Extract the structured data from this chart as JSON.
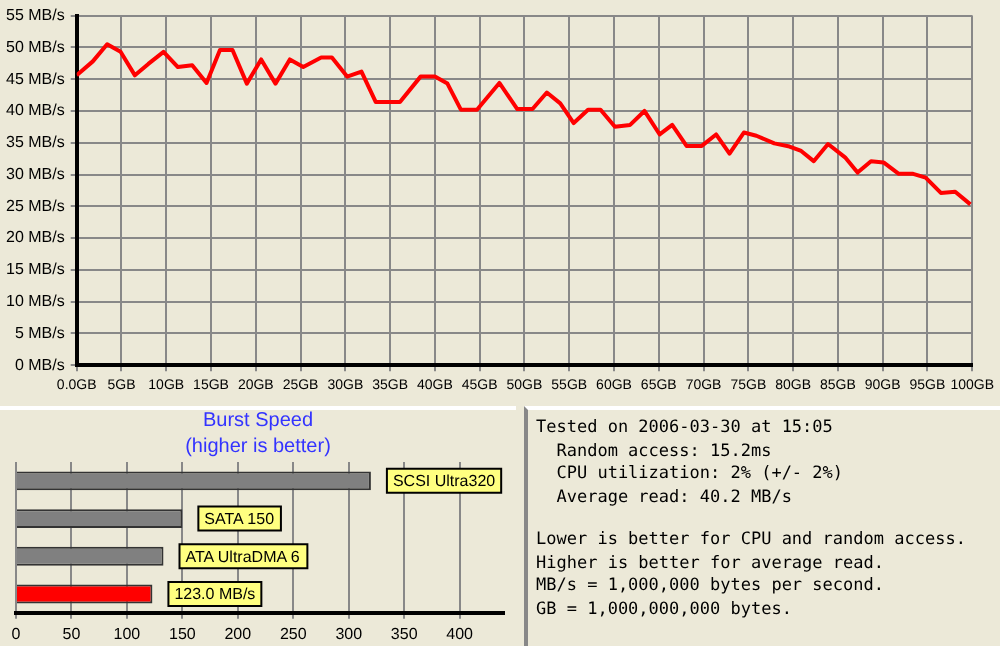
{
  "chart_data": [
    {
      "type": "line",
      "x": [
        0,
        1.8,
        3.4,
        4.9,
        6.5,
        8.0,
        9.7,
        11.3,
        12.9,
        14.5,
        16.0,
        17.4,
        19.0,
        20.6,
        22.2,
        23.8,
        25.3,
        27.3,
        28.5,
        30.2,
        31.8,
        33.4,
        36.1,
        38.4,
        40.0,
        41.4,
        42.9,
        44.7,
        47.2,
        49.2,
        50.9,
        52.5,
        54.0,
        55.5,
        57.1,
        58.5,
        60.1,
        61.8,
        63.4,
        65.1,
        66.5,
        68.1,
        69.8,
        71.4,
        72.9,
        74.5,
        75.9,
        77.9,
        79.6,
        80.9,
        82.3,
        83.9,
        85.8,
        87.2,
        88.7,
        90.1,
        91.8,
        93.4,
        94.8,
        96.5,
        98.1,
        99.8
      ],
      "series": [
        {
          "color": "#ff0000",
          "values": [
            45.6,
            47.8,
            50.5,
            49.3,
            45.6,
            47.4,
            49.3,
            46.9,
            47.2,
            44.4,
            49.6,
            49.6,
            44.3,
            48.1,
            44.3,
            48.1,
            46.9,
            48.4,
            48.4,
            45.4,
            46.2,
            41.4,
            41.4,
            45.4,
            45.4,
            44.3,
            40.2,
            40.2,
            44.4,
            40.3,
            40.3,
            42.9,
            41.2,
            38.1,
            40.2,
            40.2,
            37.5,
            37.8,
            40.0,
            36.3,
            37.8,
            34.5,
            34.5,
            36.3,
            33.3,
            36.6,
            36.1,
            34.9,
            34.4,
            33.7,
            32.1,
            34.8,
            32.7,
            30.3,
            32.1,
            31.9,
            30.1,
            30.1,
            29.5,
            27.1,
            27.3,
            25.3
          ]
        }
      ],
      "xlim": [
        0,
        100
      ],
      "xticks": [
        {
          "value": 0,
          "label": "0.0GB"
        },
        {
          "value": 5,
          "label": "5GB"
        },
        {
          "value": 10,
          "label": "10GB"
        },
        {
          "value": 15,
          "label": "15GB"
        },
        {
          "value": 20,
          "label": "20GB"
        },
        {
          "value": 25,
          "label": "25GB"
        },
        {
          "value": 30,
          "label": "30GB"
        },
        {
          "value": 35,
          "label": "35GB"
        },
        {
          "value": 40,
          "label": "40GB"
        },
        {
          "value": 45,
          "label": "45GB"
        },
        {
          "value": 50,
          "label": "50GB"
        },
        {
          "value": 55,
          "label": "55GB"
        },
        {
          "value": 60,
          "label": "60GB"
        },
        {
          "value": 65,
          "label": "65GB"
        },
        {
          "value": 70,
          "label": "70GB"
        },
        {
          "value": 75,
          "label": "75GB"
        },
        {
          "value": 80,
          "label": "80GB"
        },
        {
          "value": 85,
          "label": "85GB"
        },
        {
          "value": 90,
          "label": "90GB"
        },
        {
          "value": 95,
          "label": "95GB"
        },
        {
          "value": 100,
          "label": "100GB"
        }
      ],
      "ylim": [
        0,
        55
      ],
      "yticks": [
        {
          "value": 0,
          "label": "0 MB/s"
        },
        {
          "value": 5,
          "label": "5 MB/s"
        },
        {
          "value": 10,
          "label": "10 MB/s"
        },
        {
          "value": 15,
          "label": "15 MB/s"
        },
        {
          "value": 20,
          "label": "20 MB/s"
        },
        {
          "value": 25,
          "label": "25 MB/s"
        },
        {
          "value": 30,
          "label": "30 MB/s"
        },
        {
          "value": 35,
          "label": "35 MB/s"
        },
        {
          "value": 40,
          "label": "40 MB/s"
        },
        {
          "value": 45,
          "label": "45 MB/s"
        },
        {
          "value": 50,
          "label": "50 MB/s"
        },
        {
          "value": 55,
          "label": "55 MB/s"
        }
      ],
      "grid": true,
      "line_style": "solid"
    },
    {
      "type": "bar",
      "orientation": "horizontal",
      "title": "Burst Speed",
      "subtitle": "(higher is better)",
      "categories": [
        "SCSI Ultra320",
        "SATA 150",
        "ATA UltraDMA 6",
        null
      ],
      "values": [
        320,
        150,
        133,
        123
      ],
      "colors": [
        "#808080",
        "#808080",
        "#808080",
        "#ff0000"
      ],
      "value_labels": [
        null,
        null,
        null,
        "123.0 MB/s"
      ],
      "xlim": [
        0,
        440
      ],
      "xticks": [
        0,
        50,
        100,
        150,
        200,
        250,
        300,
        350,
        400
      ],
      "grid": "x",
      "tick_labels": "x"
    },
    {
      "type": "other",
      "annotations": [
        "Tested on 2006-03-30 at 15:05",
        "Random access: 15.2ms",
        "CPU utilization: 2% (+/- 2%)",
        "Average read: 40.2 MB/s",
        "Lower is better for CPU and random access.",
        "Higher is better for average read.",
        "MB/s = 1,000,000 bytes per second.",
        "GB = 1,000,000,000 bytes."
      ]
    }
  ]
}
